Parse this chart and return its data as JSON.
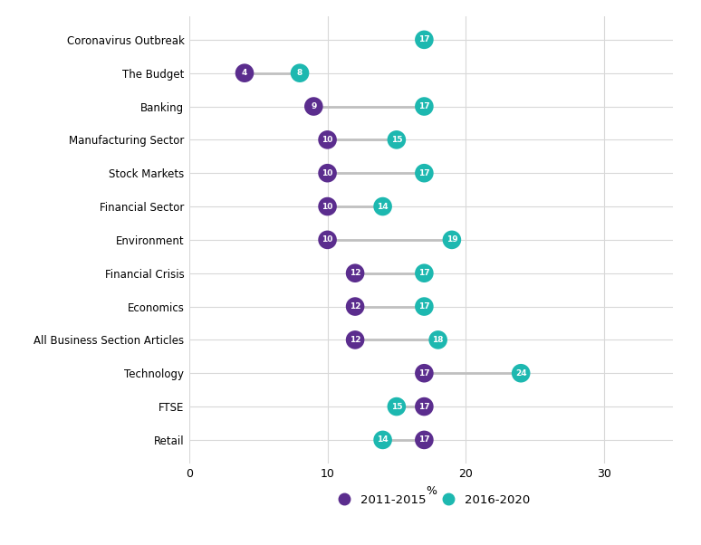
{
  "categories": [
    "Coronavirus Outbreak",
    "The Budget",
    "Banking",
    "Manufacturing Sector",
    "Stock Markets",
    "Financial Sector",
    "Environment",
    "Financial Crisis",
    "Economics",
    "All Business Section Articles",
    "Technology",
    "FTSE",
    "Retail"
  ],
  "values_2011_2015": [
    null,
    4,
    9,
    10,
    10,
    10,
    10,
    12,
    12,
    12,
    17,
    17,
    17
  ],
  "values_2016_2020": [
    17,
    8,
    17,
    15,
    17,
    14,
    19,
    17,
    17,
    18,
    24,
    15,
    14
  ],
  "color_2011_2015": "#5b2d8e",
  "color_2016_2020": "#1db8b0",
  "connector_color": "#c0c0c0",
  "background_color": "#ffffff",
  "grid_color": "#d8d8d8",
  "xlabel": "%",
  "xlim": [
    0,
    35
  ],
  "xticks": [
    0,
    10,
    20,
    30
  ],
  "label_2011_2015": "2011-2015",
  "label_2016_2020": "2016-2020",
  "dot_size": 220,
  "font_size_labels": 8.5,
  "font_size_ticks": 9,
  "font_size_values": 6.5,
  "font_size_legend": 9.5
}
